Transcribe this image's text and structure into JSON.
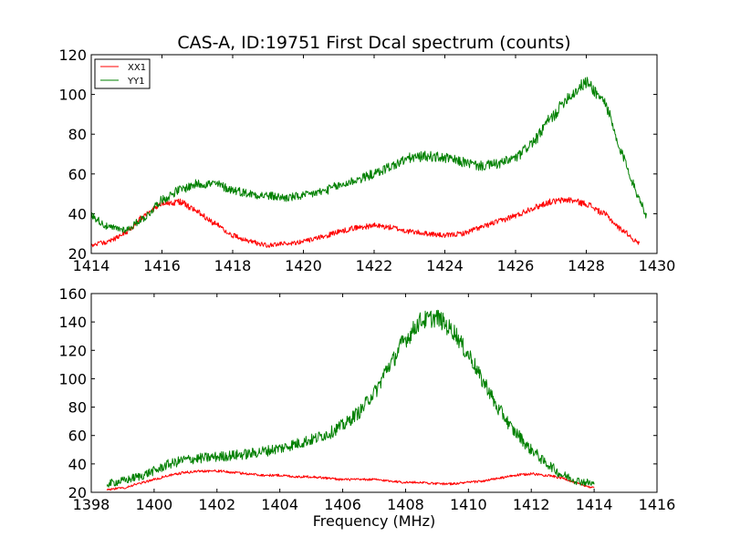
{
  "chart_data": [
    {
      "type": "line",
      "title": "CAS-A, ID:19751 First Dcal spectrum (counts)",
      "xlabel": "",
      "ylabel": "",
      "xlim": [
        1414,
        1430
      ],
      "ylim": [
        20,
        120
      ],
      "xticks": [
        1414,
        1416,
        1418,
        1420,
        1422,
        1424,
        1426,
        1428,
        1430
      ],
      "yticks": [
        20,
        40,
        60,
        80,
        100,
        120
      ],
      "legend": "top-left",
      "noise_amp": [
        1.5,
        2.0
      ],
      "series": [
        {
          "name": "XX1",
          "color": "#ff0000",
          "x": [
            1414.0,
            1414.5,
            1415.0,
            1415.5,
            1416.0,
            1416.5,
            1417.0,
            1417.5,
            1418.0,
            1418.5,
            1419.0,
            1419.5,
            1420.0,
            1420.5,
            1421.0,
            1421.5,
            1422.0,
            1422.5,
            1423.0,
            1423.5,
            1424.0,
            1424.5,
            1425.0,
            1425.5,
            1426.0,
            1426.5,
            1427.0,
            1427.5,
            1428.0,
            1428.5,
            1429.0,
            1429.5
          ],
          "values": [
            24,
            26,
            31,
            39,
            45,
            46,
            41,
            35,
            29,
            26,
            24,
            25,
            26,
            28,
            31,
            33,
            34,
            33,
            31,
            30,
            29,
            30,
            33,
            36,
            39,
            43,
            46,
            47,
            45,
            40,
            32,
            25
          ]
        },
        {
          "name": "YY1",
          "color": "#008000",
          "x": [
            1414.0,
            1414.5,
            1415.0,
            1415.5,
            1416.0,
            1416.5,
            1417.0,
            1417.5,
            1418.0,
            1418.5,
            1419.0,
            1419.5,
            1420.0,
            1420.5,
            1421.0,
            1421.5,
            1422.0,
            1422.5,
            1423.0,
            1423.5,
            1424.0,
            1424.5,
            1425.0,
            1425.5,
            1426.0,
            1426.5,
            1427.0,
            1427.5,
            1428.0,
            1428.5,
            1429.0,
            1429.5,
            1429.7
          ],
          "values": [
            39,
            33,
            32,
            38,
            47,
            52,
            55,
            55,
            52,
            50,
            49,
            48,
            49,
            51,
            54,
            57,
            60,
            64,
            68,
            69,
            68,
            66,
            64,
            65,
            68,
            76,
            88,
            99,
            106,
            97,
            70,
            48,
            39
          ]
        }
      ]
    },
    {
      "type": "line",
      "title": "",
      "xlabel": "Frequency (MHz)",
      "ylabel": "",
      "xlim": [
        1398,
        1416
      ],
      "ylim": [
        20,
        160
      ],
      "xticks": [
        1398,
        1400,
        1402,
        1404,
        1406,
        1408,
        1410,
        1412,
        1414,
        1416
      ],
      "yticks": [
        20,
        40,
        60,
        80,
        100,
        120,
        140,
        160
      ],
      "noise_amp": [
        1.0,
        3.5
      ],
      "series": [
        {
          "name": "XX1",
          "color": "#ff0000",
          "x": [
            1398.5,
            1399.0,
            1399.5,
            1400.0,
            1400.5,
            1401.0,
            1401.5,
            1402.0,
            1402.5,
            1403.0,
            1403.5,
            1404.0,
            1404.5,
            1405.0,
            1405.5,
            1406.0,
            1406.5,
            1407.0,
            1407.5,
            1408.0,
            1408.5,
            1409.0,
            1409.5,
            1410.0,
            1410.5,
            1411.0,
            1411.5,
            1412.0,
            1412.5,
            1413.0,
            1413.5,
            1414.0
          ],
          "values": [
            22,
            23,
            26,
            29,
            32,
            34,
            35,
            35,
            34,
            33,
            32,
            32,
            31,
            31,
            30,
            29,
            29,
            29,
            28,
            27,
            27,
            26,
            26,
            27,
            28,
            30,
            32,
            33,
            32,
            30,
            26,
            23
          ]
        },
        {
          "name": "YY1",
          "color": "#008000",
          "x": [
            1398.5,
            1399.0,
            1399.5,
            1400.0,
            1400.5,
            1401.0,
            1401.5,
            1402.0,
            1402.5,
            1403.0,
            1403.5,
            1404.0,
            1404.5,
            1405.0,
            1405.5,
            1406.0,
            1406.5,
            1407.0,
            1407.5,
            1408.0,
            1408.5,
            1409.0,
            1409.5,
            1410.0,
            1410.5,
            1411.0,
            1411.5,
            1412.0,
            1412.5,
            1413.0,
            1413.5,
            1414.0
          ],
          "values": [
            26,
            28,
            31,
            35,
            40,
            43,
            44,
            45,
            46,
            47,
            49,
            51,
            54,
            57,
            61,
            67,
            76,
            90,
            110,
            128,
            141,
            143,
            134,
            117,
            97,
            77,
            62,
            50,
            40,
            32,
            28,
            26
          ]
        }
      ]
    }
  ]
}
